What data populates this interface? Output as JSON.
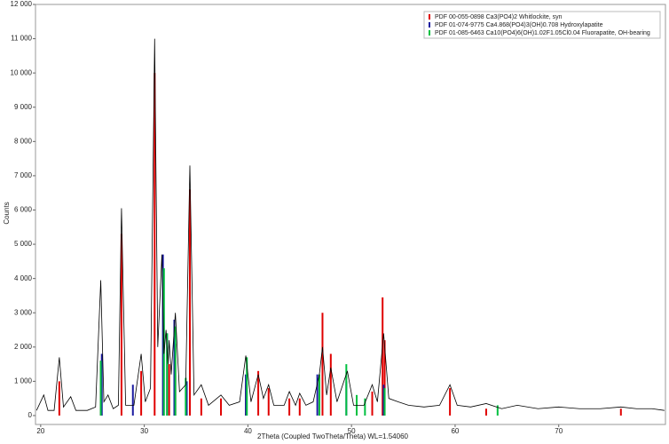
{
  "chart_data": {
    "type": "xrd",
    "x_label": "2Theta (Coupled TwoTheta/Theta) WL=1.54060",
    "y_label": "Counts",
    "xlim": [
      19.5,
      80.3
    ],
    "ylim": [
      -260,
      12000
    ],
    "xticks": [
      20,
      30,
      40,
      50,
      60,
      70
    ],
    "yticks": [
      0,
      {
        "value": 1000,
        "label": "1 000"
      },
      {
        "value": 2000,
        "label": "2 000"
      },
      {
        "value": 3000,
        "label": "3 000"
      },
      {
        "value": 4000,
        "label": "4 000"
      },
      {
        "value": 5000,
        "label": "5 000"
      },
      {
        "value": 6000,
        "label": "6 000"
      },
      {
        "value": 7000,
        "label": "7 000"
      },
      {
        "value": 8000,
        "label": "8 000"
      },
      {
        "value": 9000,
        "label": "9 000"
      },
      {
        "value": 10000,
        "label": "10 000"
      },
      {
        "value": 11000,
        "label": "11 000"
      },
      {
        "value": 12000,
        "label": "12 000"
      }
    ],
    "x": [
      19.6,
      20.3,
      20.7,
      21.3,
      21.8,
      22.2,
      22.9,
      23.4,
      24.5,
      25.3,
      25.8,
      26.1,
      26.5,
      27.0,
      27.5,
      27.8,
      28.2,
      29.0,
      29.7,
      30.1,
      30.6,
      31.0,
      31.3,
      31.7,
      31.9,
      32.1,
      32.3,
      32.4,
      32.6,
      33.0,
      33.4,
      34.0,
      34.4,
      34.8,
      35.5,
      36.2,
      37.4,
      38.2,
      39.2,
      39.8,
      40.3,
      41.0,
      41.5,
      42.0,
      42.5,
      43.5,
      44.0,
      44.6,
      45.0,
      45.6,
      46.3,
      46.9,
      47.2,
      47.6,
      48.0,
      48.6,
      49.6,
      50.2,
      51.2,
      52.0,
      52.5,
      53.1,
      53.6,
      54.5,
      55.5,
      57.0,
      58.5,
      59.5,
      60.2,
      61.5,
      63.0,
      64.5,
      66.0,
      68.0,
      70.0,
      72.0,
      74.0,
      76.0,
      77.5,
      79.0,
      80.2
    ],
    "series": [
      {
        "color": "#000000",
        "values": [
          150,
          600,
          150,
          150,
          1700,
          250,
          550,
          150,
          150,
          250,
          3950,
          400,
          600,
          200,
          300,
          6050,
          300,
          300,
          1800,
          400,
          800,
          11000,
          2000,
          4700,
          1800,
          2500,
          1500,
          2200,
          1200,
          3000,
          700,
          900,
          7300,
          600,
          900,
          300,
          600,
          300,
          400,
          1750,
          400,
          1200,
          500,
          900,
          300,
          300,
          700,
          300,
          650,
          300,
          400,
          1200,
          2000,
          600,
          1400,
          400,
          1300,
          300,
          300,
          900,
          400,
          2400,
          500,
          400,
          300,
          250,
          300,
          900,
          300,
          250,
          350,
          200,
          300,
          200,
          250,
          200,
          200,
          250,
          200,
          200,
          150
        ]
      }
    ],
    "references": [
      {
        "name": "PDF 00-055-0898 Ca3(PO4)2 Whitlockite, syn",
        "color": "#e00000",
        "x": [
          21.8,
          25.8,
          27.8,
          29.7,
          31.0,
          32.4,
          33.0,
          34.4,
          35.5,
          37.4,
          39.8,
          41.0,
          42.0,
          44.0,
          45.0,
          46.9,
          47.2,
          48.0,
          52.0,
          53.0,
          53.2,
          59.5,
          63.0,
          76.0
        ],
        "values": [
          1000,
          1600,
          5300,
          1300,
          10000,
          1500,
          2100,
          6600,
          500,
          500,
          900,
          1300,
          800,
          500,
          500,
          1100,
          3000,
          1800,
          700,
          3450,
          2200,
          800,
          200,
          200
        ]
      },
      {
        "name": "PDF 01-074-9775 Ca4.868(PO4)3(OH)0.708 Hydroxylapatite",
        "color": "#1a1aa0",
        "x": [
          25.9,
          28.9,
          31.8,
          32.2,
          32.9,
          34.1,
          39.8,
          46.7,
          49.5,
          53.1
        ],
        "values": [
          1800,
          900,
          4700,
          2400,
          2800,
          1000,
          1200,
          1200,
          1000,
          900
        ]
      },
      {
        "name": "PDF 01-085-6463 Ca10(PO4)6(OH)1.02F1.05Cl0.04 Fluorapatite, OH-bearing",
        "color": "#00c040",
        "x": [
          25.8,
          31.9,
          32.2,
          33.0,
          34.0,
          39.9,
          46.9,
          49.5,
          50.5,
          51.3,
          53.2,
          64.1
        ],
        "values": [
          1600,
          4300,
          2400,
          2600,
          1100,
          1700,
          1200,
          1500,
          600,
          500,
          800,
          300
        ]
      }
    ]
  }
}
